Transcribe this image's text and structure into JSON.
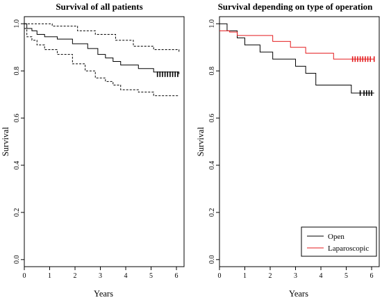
{
  "chart_data": [
    {
      "type": "line",
      "subtype": "kaplan-meier step curve with confidence band",
      "title": "Survival of all patients",
      "xlabel": "Years",
      "ylabel": "Survival",
      "xlim": [
        0,
        6.3
      ],
      "ylim": [
        -0.03,
        1.03
      ],
      "x_ticks": [
        0,
        1,
        2,
        3,
        4,
        5,
        6
      ],
      "y_ticks": [
        0.0,
        0.2,
        0.4,
        0.6,
        0.8,
        1.0
      ],
      "x_tick_labels": [
        "0",
        "1",
        "2",
        "3",
        "4",
        "5",
        "6"
      ],
      "y_tick_labels": [
        "0.0",
        "0.2",
        "0.4",
        "0.6",
        "0.8",
        "1.0"
      ],
      "grid": false,
      "series": [
        {
          "color": "#000000",
          "style": "solid",
          "x": [
            0,
            0.1,
            0.3,
            0.5,
            0.8,
            1.3,
            1.9,
            2.5,
            2.9,
            3.2,
            3.5,
            3.8,
            4.5,
            5.1,
            6.1
          ],
          "y": [
            1.0,
            0.98,
            0.97,
            0.955,
            0.945,
            0.935,
            0.915,
            0.895,
            0.87,
            0.855,
            0.84,
            0.825,
            0.81,
            0.795,
            0.786
          ],
          "censor_x": [
            5.25,
            5.35,
            5.45,
            5.55,
            5.65,
            5.75,
            5.85,
            5.95,
            6.05
          ],
          "censor_y": 0.786
        },
        {
          "color": "#000000",
          "style": "dashed",
          "x": [
            0,
            0.6,
            1.1,
            2.1,
            2.8,
            3.6,
            4.3,
            5.1,
            6.1
          ],
          "y": [
            1.0,
            1.0,
            0.99,
            0.97,
            0.955,
            0.93,
            0.905,
            0.89,
            0.88
          ]
        },
        {
          "color": "#000000",
          "style": "dashed",
          "x": [
            0,
            0.1,
            0.3,
            0.5,
            0.8,
            1.3,
            1.9,
            2.4,
            2.8,
            3.2,
            3.5,
            3.8,
            4.5,
            5.1,
            6.1
          ],
          "y": [
            0.98,
            0.945,
            0.93,
            0.91,
            0.89,
            0.87,
            0.83,
            0.8,
            0.77,
            0.755,
            0.74,
            0.72,
            0.71,
            0.695,
            0.695
          ]
        }
      ]
    },
    {
      "type": "line",
      "subtype": "kaplan-meier step curves",
      "title": "Survival depending on type of operation",
      "xlabel": "Years",
      "ylabel": "Survival",
      "xlim": [
        0,
        6.3
      ],
      "ylim": [
        -0.03,
        1.03
      ],
      "x_ticks": [
        0,
        1,
        2,
        3,
        4,
        5,
        6
      ],
      "y_ticks": [
        0.0,
        0.2,
        0.4,
        0.6,
        0.8,
        1.0
      ],
      "x_tick_labels": [
        "0",
        "1",
        "2",
        "3",
        "4",
        "5",
        "6"
      ],
      "y_tick_labels": [
        "0.0",
        "0.2",
        "0.4",
        "0.6",
        "0.8",
        "1.0"
      ],
      "grid": false,
      "legend_position": "bottom-right",
      "series": [
        {
          "name": "Open",
          "color": "#000000",
          "style": "solid",
          "x": [
            0,
            0.3,
            0.7,
            1.0,
            1.6,
            2.1,
            3.0,
            3.4,
            3.8,
            5.2,
            6.1
          ],
          "y": [
            1.0,
            0.97,
            0.94,
            0.91,
            0.88,
            0.85,
            0.82,
            0.79,
            0.74,
            0.706,
            0.706
          ],
          "censor_x": [
            5.55,
            5.7,
            5.8,
            5.9,
            6.0
          ],
          "censor_y": 0.706
        },
        {
          "name": "Laparoscopic",
          "color": "#e41a1c",
          "style": "solid",
          "x": [
            0,
            0.4,
            0.7,
            2.1,
            2.8,
            3.4,
            4.5,
            6.1
          ],
          "y": [
            0.97,
            0.965,
            0.95,
            0.925,
            0.9,
            0.875,
            0.85,
            0.85
          ],
          "censor_x": [
            5.25,
            5.35,
            5.45,
            5.55,
            5.65,
            5.75,
            5.85,
            5.95,
            6.1
          ],
          "censor_y": 0.85
        }
      ]
    }
  ]
}
